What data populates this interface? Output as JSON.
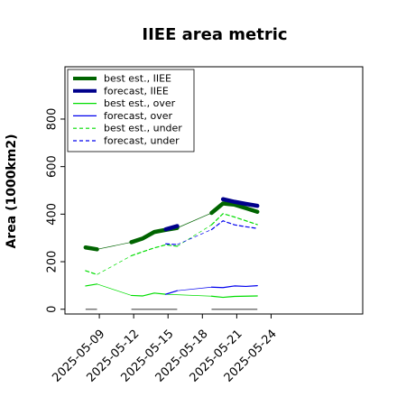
{
  "chart_data": {
    "type": "line",
    "title": "IIEE area metric",
    "ylabel": "Area (1000km2)",
    "xlabel": "",
    "ylim": [
      -20,
      1020
    ],
    "xlim": [
      0,
      26
    ],
    "yticks": [
      0,
      200,
      400,
      600,
      800
    ],
    "xticks": [
      {
        "x": 3,
        "label": "2025-05-09",
        "color": "#000000"
      },
      {
        "x": 6,
        "label": "2025-05-12",
        "color": "#000000"
      },
      {
        "x": 9,
        "label": "2025-05-15",
        "color": "#2e8b3e"
      },
      {
        "x": 12,
        "label": "2025-05-18",
        "color": "#000000"
      },
      {
        "x": 15,
        "label": "2025-05-21",
        "color": "#000000"
      },
      {
        "x": 18,
        "label": "2025-05-24",
        "color": "#000000"
      }
    ],
    "legend_position": "upper-left",
    "series": [
      {
        "name": "best est., IIEE",
        "color": "#006400",
        "style": "solid",
        "width": 4.5,
        "segments": [
          [
            [
              1.8,
              260
            ],
            [
              2.8,
              252
            ]
          ],
          [
            [
              5.8,
              282
            ],
            [
              6.8,
              298
            ],
            [
              7.8,
              325
            ],
            [
              8.8,
              334
            ],
            [
              9.8,
              342
            ]
          ],
          [
            [
              12.8,
              405
            ],
            [
              13.8,
              445
            ],
            [
              14.8,
              440
            ],
            [
              15.8,
              425
            ],
            [
              16.8,
              410
            ]
          ]
        ]
      },
      {
        "name": "forecast, IIEE",
        "color": "#00008b",
        "style": "solid",
        "width": 4.5,
        "segments": [
          [
            [
              8.8,
              336
            ],
            [
              9.8,
              350
            ]
          ],
          [
            [
              13.8,
              463
            ],
            [
              14.8,
              452
            ],
            [
              15.8,
              443
            ],
            [
              16.8,
              435
            ]
          ]
        ]
      },
      {
        "name": "best est., over",
        "color": "#00dd00",
        "style": "solid",
        "width": 1.2,
        "segments": [
          [
            [
              1.8,
              98
            ],
            [
              2.8,
              106
            ]
          ],
          [
            [
              5.8,
              58
            ],
            [
              6.8,
              56
            ],
            [
              7.8,
              68
            ],
            [
              8.8,
              63
            ]
          ],
          [
            [
              12.8,
              55
            ],
            [
              13.8,
              50
            ],
            [
              14.8,
              54
            ],
            [
              15.8,
              55
            ],
            [
              16.8,
              56
            ]
          ]
        ]
      },
      {
        "name": "forecast, over",
        "color": "#0000ee",
        "style": "solid",
        "width": 1.2,
        "segments": [
          [
            [
              8.8,
              63
            ],
            [
              9.8,
              78
            ]
          ],
          [
            [
              12.8,
              93
            ],
            [
              13.8,
              91
            ],
            [
              14.8,
              98
            ],
            [
              15.8,
              96
            ],
            [
              16.8,
              99
            ]
          ]
        ]
      },
      {
        "name": "best est., under",
        "color": "#00dd00",
        "style": "dashed",
        "width": 1.2,
        "segments": [
          [
            [
              1.8,
              162
            ],
            [
              2.8,
              146
            ]
          ],
          [
            [
              5.8,
              225
            ],
            [
              6.8,
              242
            ],
            [
              7.8,
              258
            ],
            [
              8.8,
              271
            ],
            [
              9.8,
              265
            ]
          ],
          [
            [
              12.8,
              355
            ],
            [
              13.8,
              402
            ],
            [
              14.8,
              388
            ],
            [
              15.8,
              372
            ],
            [
              16.8,
              356
            ]
          ]
        ]
      },
      {
        "name": "forecast, under",
        "color": "#0000ee",
        "style": "dashed",
        "width": 1.2,
        "segments": [
          [
            [
              8.8,
              275
            ],
            [
              9.8,
              272
            ]
          ],
          [
            [
              12.8,
              335
            ],
            [
              13.8,
              372
            ],
            [
              14.8,
              355
            ],
            [
              15.8,
              347
            ],
            [
              16.8,
              340
            ]
          ]
        ]
      }
    ],
    "connectors": [
      {
        "color": "#006400",
        "style": "solid",
        "width": 0.7,
        "points": [
          [
            2.8,
            252
          ],
          [
            5.8,
            282
          ]
        ]
      },
      {
        "color": "#006400",
        "style": "solid",
        "width": 0.7,
        "points": [
          [
            9.8,
            342
          ],
          [
            12.8,
            405
          ]
        ]
      },
      {
        "color": "#00dd00",
        "style": "solid",
        "width": 0.7,
        "points": [
          [
            2.8,
            106
          ],
          [
            5.8,
            58
          ]
        ]
      },
      {
        "color": "#00dd00",
        "style": "solid",
        "width": 0.7,
        "points": [
          [
            8.8,
            63
          ],
          [
            12.8,
            55
          ]
        ]
      },
      {
        "color": "#0000ee",
        "style": "solid",
        "width": 0.7,
        "points": [
          [
            9.8,
            78
          ],
          [
            12.8,
            93
          ]
        ]
      },
      {
        "color": "#00dd00",
        "style": "dashed",
        "width": 0.7,
        "points": [
          [
            2.8,
            146
          ],
          [
            5.8,
            225
          ]
        ]
      },
      {
        "color": "#00dd00",
        "style": "dashed",
        "width": 0.7,
        "points": [
          [
            9.8,
            265
          ],
          [
            12.8,
            355
          ]
        ]
      },
      {
        "color": "#0000ee",
        "style": "dashed",
        "width": 0.7,
        "points": [
          [
            9.8,
            272
          ],
          [
            12.8,
            335
          ]
        ]
      }
    ],
    "zero_bars": [
      {
        "x0": 1.8,
        "x1": 2.8,
        "y": 0
      },
      {
        "x0": 5.8,
        "x1": 9.8,
        "y": 0
      },
      {
        "x0": 12.8,
        "x1": 16.8,
        "y": 0
      }
    ]
  }
}
